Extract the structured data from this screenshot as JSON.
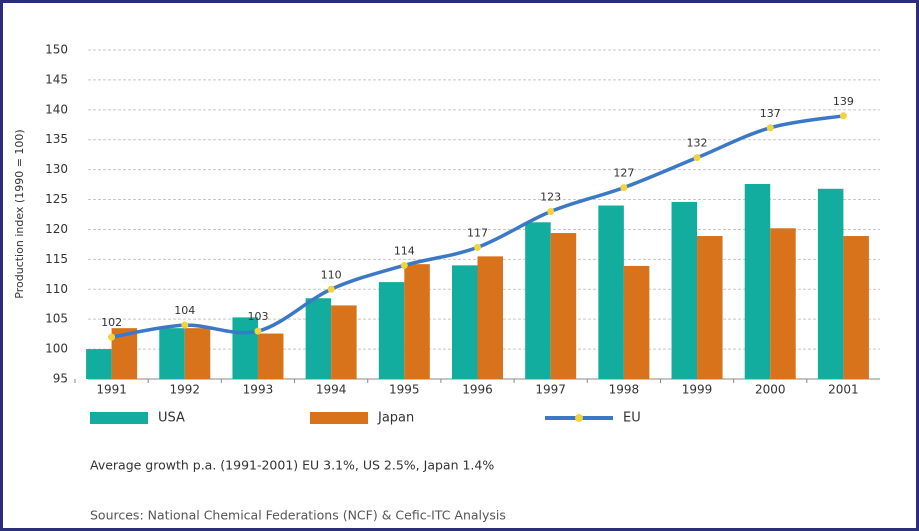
{
  "chart_data": {
    "type": "bar-line",
    "y_label": "Production index (1990 = 100)",
    "categories": [
      "1991",
      "1992",
      "1993",
      "1994",
      "1995",
      "1996",
      "1997",
      "1998",
      "1999",
      "2000",
      "2001"
    ],
    "series": [
      {
        "name": "USA",
        "type": "bar",
        "color": "#12ad9e",
        "values": [
          100,
          103.5,
          105.3,
          108.5,
          111.2,
          114,
          121.2,
          124,
          124.6,
          127.6,
          126.8
        ]
      },
      {
        "name": "Japan",
        "type": "bar",
        "color": "#d9731b",
        "values": [
          103.5,
          103.5,
          102.6,
          107.3,
          114.2,
          115.5,
          119.4,
          113.9,
          118.9,
          120.2,
          118.9
        ]
      },
      {
        "name": "EU",
        "type": "line",
        "color": "#3b78c6",
        "marker_color": "#f4d23a",
        "values": [
          102,
          104,
          103,
          110,
          114,
          117,
          123,
          127,
          132,
          137,
          139
        ]
      }
    ],
    "ylim": [
      95,
      150
    ],
    "yticks": [
      95,
      100,
      105,
      110,
      115,
      120,
      125,
      130,
      135,
      140,
      145,
      150
    ],
    "grid": true,
    "note": "Average growth p.a. (1991-2001) EU 3.1%, US 2.5%, Japan 1.4%",
    "source": "Sources:  National Chemical Federations (NCF) & Cefic-ITC Analysis"
  }
}
